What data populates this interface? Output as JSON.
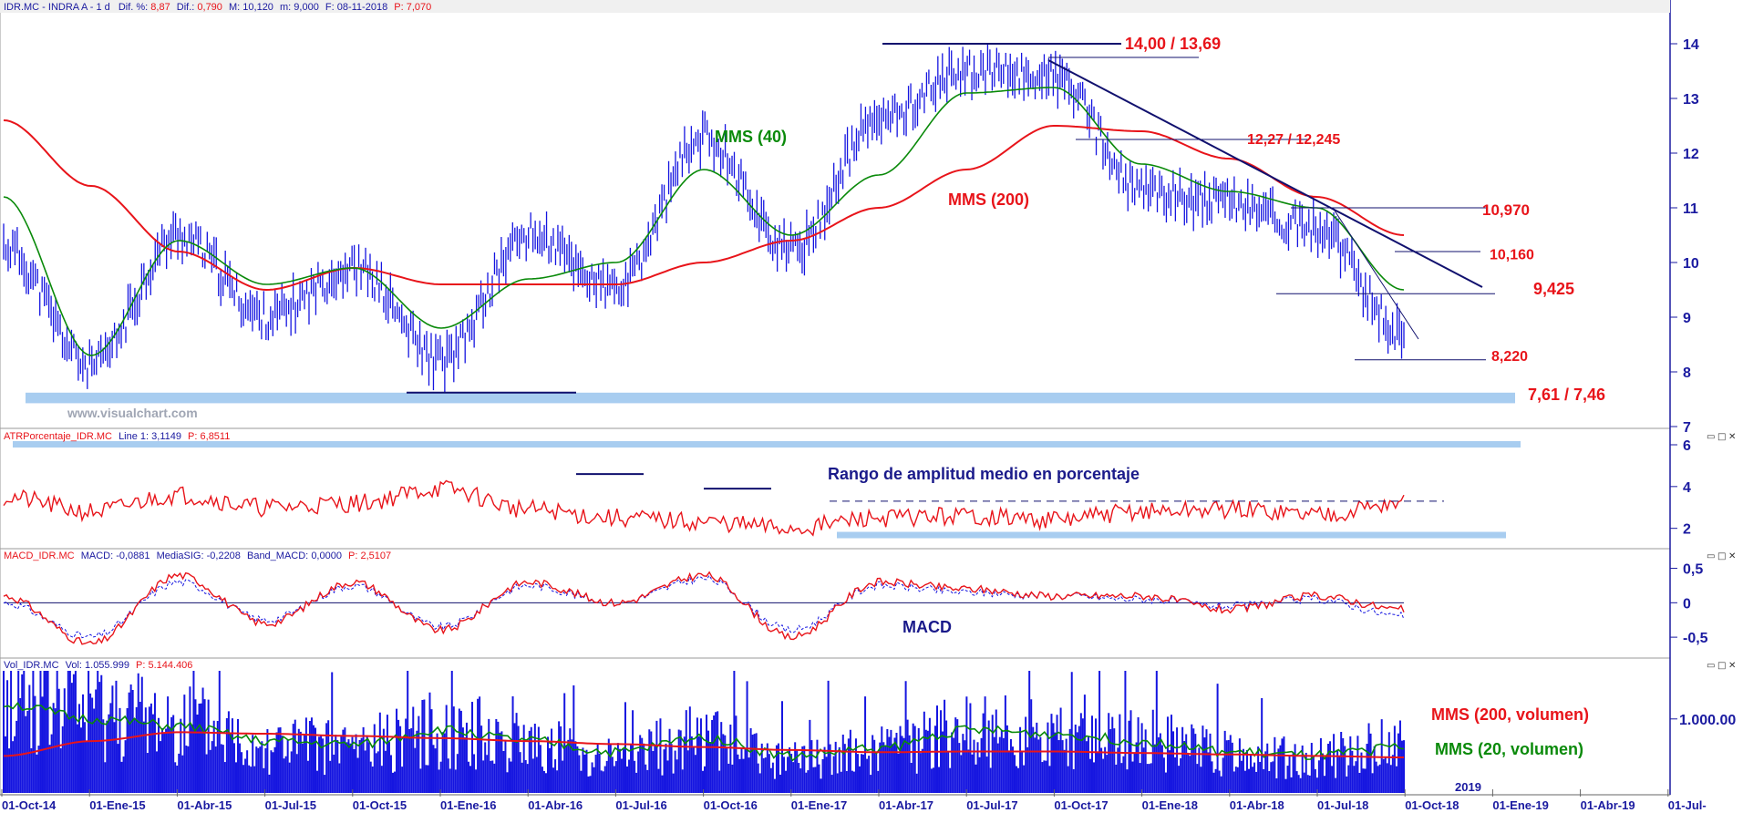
{
  "panels": {
    "price": {
      "header": {
        "title": "IDR.MC - INDRA A - 1 d",
        "dif_pct_label": "Dif. %:",
        "dif_pct": "8,87",
        "dif_label": "Dif.:",
        "dif": "0,790",
        "max_label": "M:",
        "max": "10,120",
        "min_label": "m:",
        "min": "9,000",
        "date_label": "F:",
        "date": "08-11-2018",
        "p_label": "P:",
        "p": "7,070"
      },
      "watermark": "www.visualchart.com"
    },
    "atr": {
      "header": {
        "name": "ATRPorcentaje_IDR.MC",
        "line_label": "Line 1:",
        "line": "3,1149",
        "p_label": "P:",
        "p": "6,8511"
      }
    },
    "macd": {
      "header": {
        "name": "MACD_IDR.MC",
        "macd_label": "MACD:",
        "macd": "-0,0881",
        "sig_label": "MediaSIG:",
        "sig": "-0,2208",
        "band_label": "Band_MACD:",
        "band": "0,0000",
        "p_label": "P:",
        "p": "2,5107"
      }
    },
    "volume": {
      "header": {
        "name": "Vol_IDR.MC",
        "vol_label": "Vol:",
        "vol": "1.055.999",
        "p_label": "P:",
        "p": "5.144.406"
      }
    }
  },
  "chart_data": [
    {
      "panel": "price",
      "type": "bar",
      "y_ticks": [
        "14",
        "13",
        "12",
        "11",
        "10",
        "9",
        "8",
        "7"
      ],
      "ylim": [
        7,
        14.4
      ],
      "x": [
        "2014-10",
        "2015-01",
        "2015-04",
        "2015-07",
        "2015-10",
        "2016-01",
        "2016-04",
        "2016-07",
        "2016-10",
        "2017-01",
        "2017-04",
        "2017-07",
        "2017-10",
        "2018-01",
        "2018-04",
        "2018-07",
        "2018-10"
      ],
      "series": [
        {
          "name": "",
          "values": [
            10.3,
            8.1,
            10.5,
            9.0,
            9.9,
            8.2,
            10.5,
            9.5,
            12.3,
            10.2,
            12.6,
            13.5,
            13.4,
            11.3,
            11.1,
            10.6,
            8.7
          ]
        },
        {
          "name": "MMS (40)",
          "values": [
            11.2,
            8.3,
            10.4,
            9.6,
            9.9,
            8.8,
            9.7,
            10.0,
            11.7,
            10.5,
            11.6,
            13.1,
            13.2,
            11.8,
            11.3,
            11.0,
            9.5
          ]
        },
        {
          "name": "MMS (200)",
          "values": [
            12.6,
            11.4,
            10.2,
            9.5,
            9.9,
            9.6,
            9.6,
            9.6,
            10.0,
            10.4,
            11.0,
            11.7,
            12.5,
            12.4,
            11.9,
            11.2,
            10.5
          ]
        }
      ],
      "annotations": [
        {
          "label": "14,00 / 13,69",
          "value": 14.0,
          "color": "#e8141a"
        },
        {
          "label": "12,27 / 12,245",
          "value": 12.27,
          "color": "#e8141a"
        },
        {
          "label": "10,970",
          "value": 10.97,
          "color": "#e8141a"
        },
        {
          "label": "10,160",
          "value": 10.16,
          "color": "#e8141a"
        },
        {
          "label": "9,425",
          "value": 9.425,
          "color": "#e8141a"
        },
        {
          "label": "8,220",
          "value": 8.22,
          "color": "#e8141a"
        },
        {
          "label": "7,61 / 7,46",
          "value": 7.6,
          "color": "#e8141a"
        },
        {
          "label": "MMS (40)",
          "color": "#0a8a0a"
        },
        {
          "label": "MMS (200)",
          "color": "#e8141a"
        }
      ]
    },
    {
      "panel": "atr",
      "type": "line",
      "y_ticks": [
        "6",
        "4",
        "2"
      ],
      "ylim": [
        1.2,
        6.0
      ],
      "series": [
        {
          "name": "",
          "values": [
            3.5,
            2.8,
            3.6,
            3.0,
            3.2,
            3.9,
            2.9,
            2.5,
            2.3,
            2.0,
            2.5,
            2.6,
            2.4,
            2.8,
            2.9,
            2.7,
            3.2
          ]
        }
      ],
      "annotations": [
        {
          "label": "Rango de amplitud medio en porcentaje",
          "color": "#1a1a8a"
        }
      ]
    },
    {
      "panel": "macd",
      "type": "line",
      "y_ticks": [
        "0,5",
        "0",
        "-0,5"
      ],
      "ylim": [
        -0.75,
        0.6
      ],
      "series": [
        {
          "name": "",
          "values": [
            0.1,
            -0.6,
            0.4,
            -0.3,
            0.3,
            -0.4,
            0.3,
            0.0,
            0.4,
            -0.5,
            0.3,
            0.2,
            0.1,
            0.1,
            -0.1,
            0.1,
            -0.1
          ]
        },
        {
          "name": "",
          "values": [
            0.0,
            -0.5,
            0.3,
            -0.25,
            0.25,
            -0.35,
            0.25,
            0.0,
            0.35,
            -0.4,
            0.25,
            0.15,
            0.1,
            0.05,
            -0.05,
            0.05,
            -0.2
          ]
        }
      ],
      "annotations": [
        {
          "label": "MACD",
          "color": "#1a1a8a"
        }
      ]
    },
    {
      "panel": "volume",
      "type": "bar",
      "y_ticks": [
        "1.000.00"
      ],
      "series": [
        {
          "name": "",
          "values": [
            1400000,
            1200000,
            1000000,
            700000,
            650000,
            900000,
            700000,
            500000,
            800000,
            450000,
            600000,
            900000,
            800000,
            750000,
            550000,
            500000,
            700000
          ]
        },
        {
          "name": "MMS (200, volumen)",
          "values": [
            500000,
            700000,
            820000,
            800000,
            770000,
            740000,
            700000,
            660000,
            620000,
            580000,
            550000,
            560000,
            560000,
            540000,
            520000,
            500000,
            480000
          ]
        },
        {
          "name": "MMS (20, volumen)",
          "values": [
            1200000,
            1000000,
            900000,
            700000,
            650000,
            850000,
            700000,
            550000,
            750000,
            500000,
            600000,
            850000,
            800000,
            700000,
            550000,
            500000,
            620000
          ]
        }
      ]
    }
  ],
  "x_axis": {
    "labels": [
      "01-Oct-14",
      "01-Ene-15",
      "01-Abr-15",
      "01-Jul-15",
      "01-Oct-15",
      "01-Ene-16",
      "01-Abr-16",
      "01-Jul-16",
      "01-Oct-16",
      "01-Ene-17",
      "01-Abr-17",
      "01-Jul-17",
      "01-Oct-17",
      "01-Ene-18",
      "01-Abr-18",
      "01-Jul-18",
      "01-Oct-18",
      "01-Ene-19",
      "01-Abr-19",
      "01-Jul-"
    ],
    "year_marker": "2019"
  },
  "colors": {
    "price": "#1515e0",
    "mms40": "#0a8a0a",
    "mms200": "#e8141a",
    "trend": "#10106e",
    "support": "#a8cdf0",
    "annotation": "#e8141a",
    "axis_text": "#1a1aa0"
  }
}
